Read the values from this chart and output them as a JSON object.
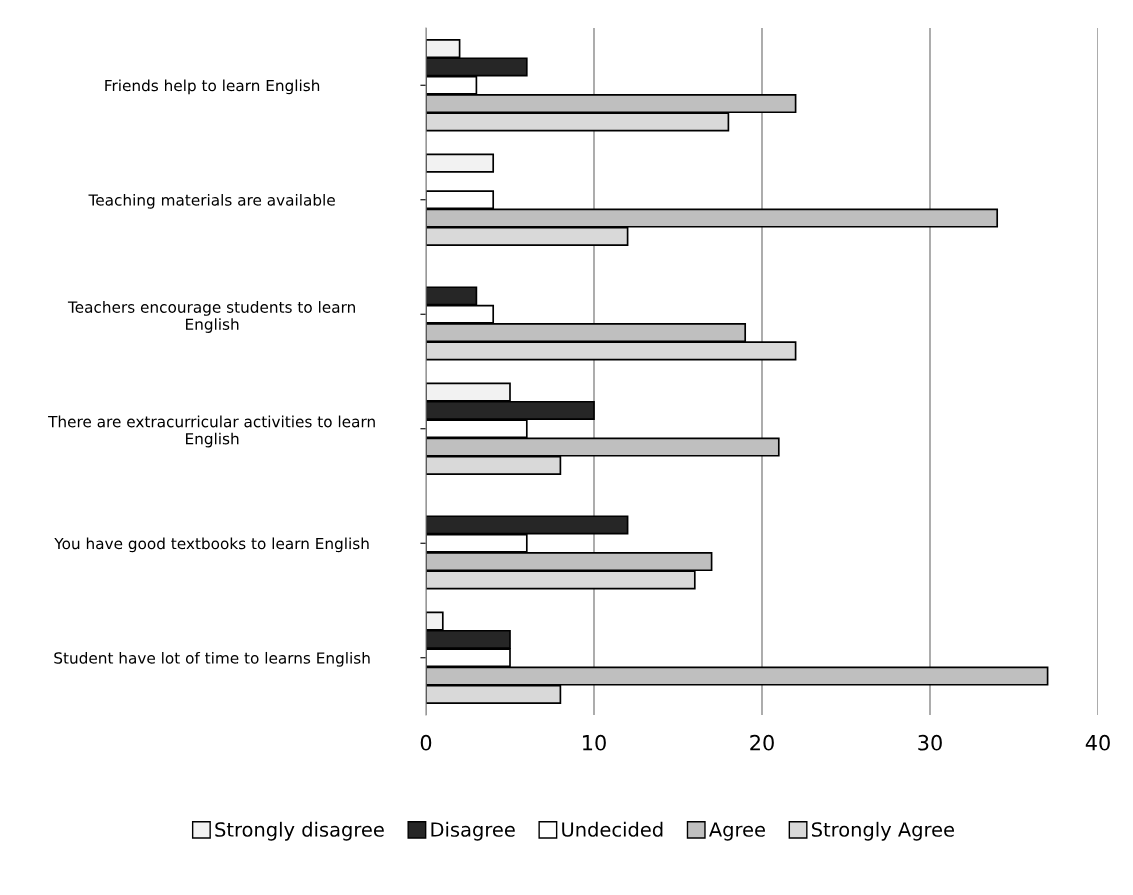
{
  "chart_data": {
    "type": "bar",
    "orientation": "horizontal",
    "categories": [
      "Friends help to learn English",
      "Teaching materials are available",
      "Teachers encourage students to learn\nEnglish",
      "There are extracurricular activities to learn\nEnglish",
      "You have good textbooks to learn English",
      "Student have lot of time to learns English"
    ],
    "series": [
      {
        "name": "Strongly disagree",
        "color": "#f2f2f2",
        "values": [
          2,
          4,
          null,
          5,
          null,
          1
        ]
      },
      {
        "name": "Disagree",
        "color": "#262626",
        "values": [
          6,
          null,
          3,
          10,
          12,
          5
        ]
      },
      {
        "name": "Undecided",
        "color": "#ffffff",
        "values": [
          3,
          4,
          4,
          6,
          6,
          5
        ]
      },
      {
        "name": "Agree",
        "color": "#bfbfbf",
        "values": [
          22,
          34,
          19,
          21,
          17,
          37
        ]
      },
      {
        "name": "Strongly Agree",
        "color": "#d9d9d9",
        "values": [
          18,
          12,
          22,
          8,
          16,
          8
        ]
      }
    ],
    "xlim": [
      0,
      40
    ],
    "xticks": [
      0,
      10,
      20,
      30,
      40
    ],
    "grid": "x",
    "legend": "bottom"
  }
}
